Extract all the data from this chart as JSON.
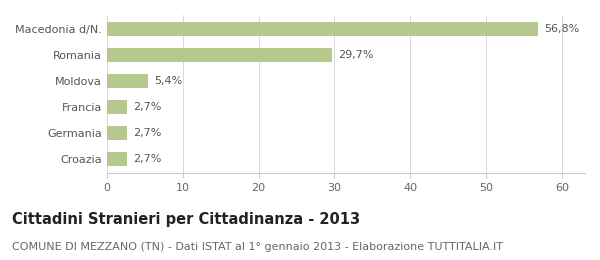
{
  "categories": [
    "Macedonia d/N.",
    "Romania",
    "Moldova",
    "Francia",
    "Germania",
    "Croazia"
  ],
  "values": [
    56.8,
    29.7,
    5.4,
    2.7,
    2.7,
    2.7
  ],
  "labels": [
    "56,8%",
    "29,7%",
    "5,4%",
    "2,7%",
    "2,7%",
    "2,7%"
  ],
  "bar_color": "#b5c98e",
  "xlim": [
    0,
    63
  ],
  "xticks": [
    0,
    10,
    20,
    30,
    40,
    50,
    60
  ],
  "title": "Cittadini Stranieri per Cittadinanza - 2013",
  "subtitle": "COMUNE DI MEZZANO (TN) - Dati ISTAT al 1° gennaio 2013 - Elaborazione TUTTITALIA.IT",
  "title_fontsize": 10.5,
  "subtitle_fontsize": 8,
  "label_fontsize": 8,
  "tick_fontsize": 8,
  "ytick_fontsize": 8,
  "background_color": "#ffffff",
  "bar_height": 0.55
}
